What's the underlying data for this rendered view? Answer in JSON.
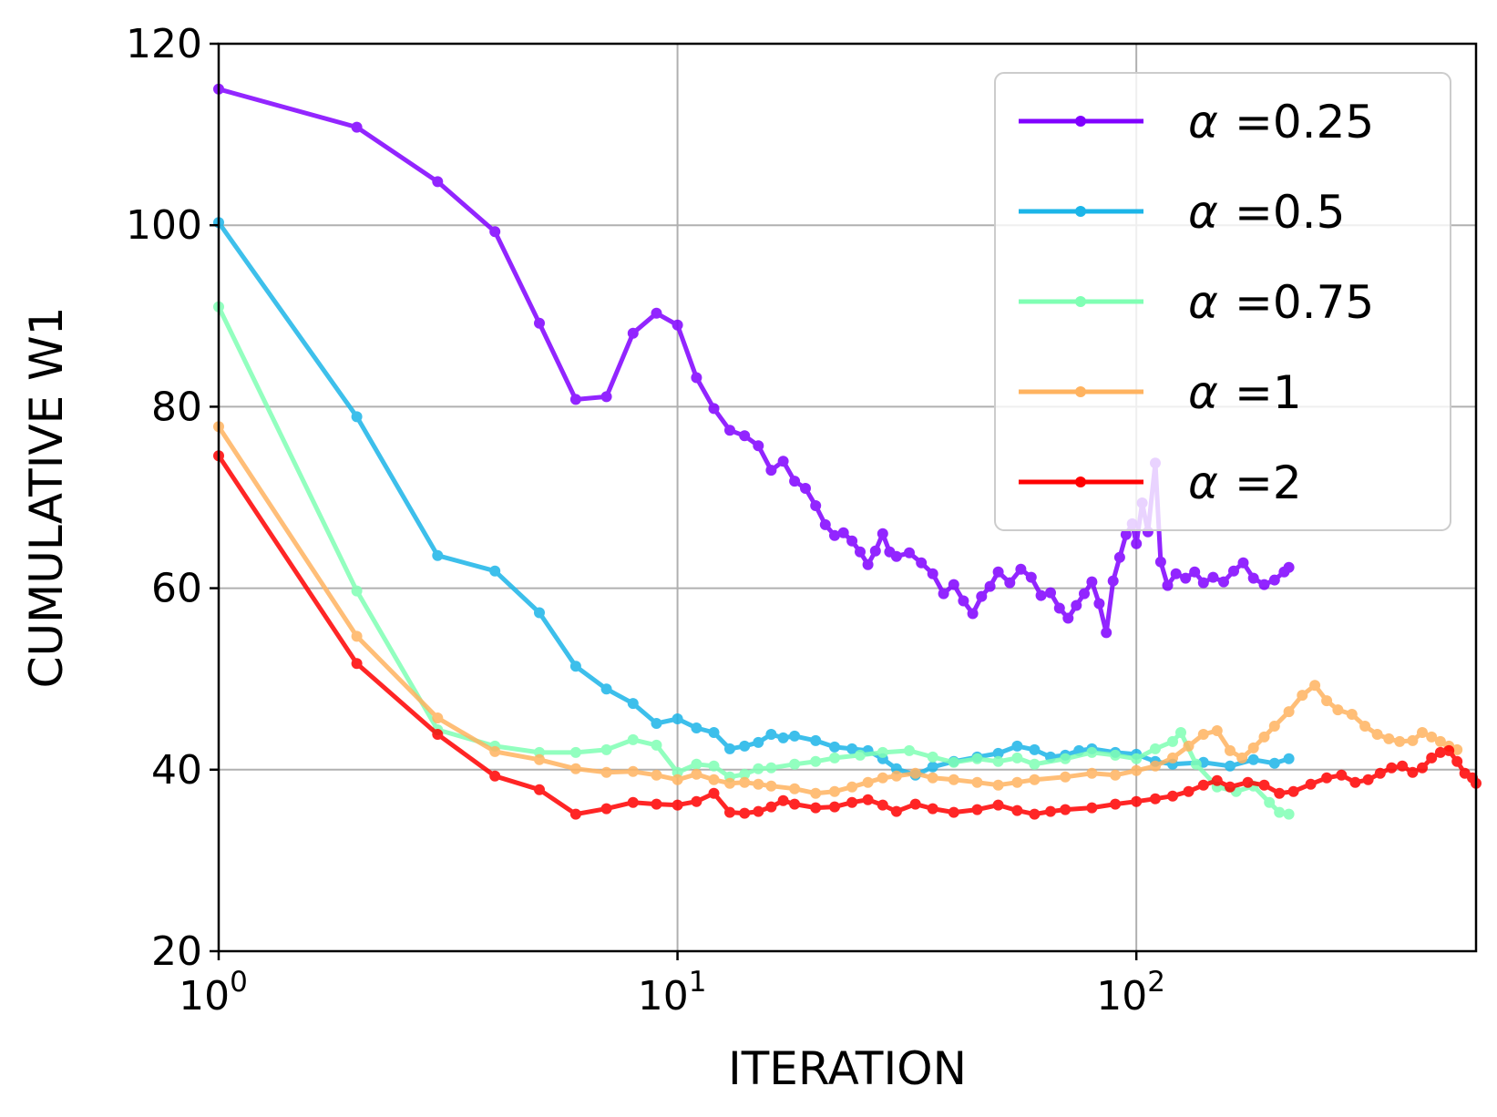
{
  "chart_data": {
    "type": "line",
    "title": "",
    "xlabel": "ITERATION",
    "ylabel": "CUMULATIVE W1",
    "xscale": "log",
    "xlim": [
      1,
      550
    ],
    "ylim": [
      20,
      120
    ],
    "yticks": [
      20,
      40,
      60,
      80,
      100,
      120
    ],
    "xticks": [
      {
        "base": "10",
        "exp": "0",
        "value": 1
      },
      {
        "base": "10",
        "exp": "1",
        "value": 10
      },
      {
        "base": "10",
        "exp": "2",
        "value": 100
      }
    ],
    "grid": true,
    "legend_position": "top-right",
    "series": [
      {
        "name": "α =0.25",
        "symbol": "α",
        "value_text": "=0.25",
        "color": "#8000ff",
        "points": [
          [
            1,
            115
          ],
          [
            2,
            110.8
          ],
          [
            3,
            104.8
          ],
          [
            4,
            99.3
          ],
          [
            5,
            89.2
          ],
          [
            6,
            80.8
          ],
          [
            7,
            81.1
          ],
          [
            8,
            88.1
          ],
          [
            9,
            90.3
          ],
          [
            10,
            89
          ],
          [
            11,
            83.2
          ],
          [
            12,
            79.8
          ],
          [
            13,
            77.4
          ],
          [
            14,
            76.8
          ],
          [
            15,
            75.7
          ],
          [
            16,
            73
          ],
          [
            17,
            74
          ],
          [
            18,
            71.8
          ],
          [
            19,
            71
          ],
          [
            20,
            69.1
          ],
          [
            21,
            67
          ],
          [
            22,
            65.8
          ],
          [
            23,
            66.1
          ],
          [
            24,
            65.2
          ],
          [
            25,
            64
          ],
          [
            26,
            62.6
          ],
          [
            27,
            64.1
          ],
          [
            28,
            66
          ],
          [
            29,
            64
          ],
          [
            30,
            63.5
          ],
          [
            32,
            63.9
          ],
          [
            34,
            62.8
          ],
          [
            36,
            61.6
          ],
          [
            38,
            59.4
          ],
          [
            40,
            60.4
          ],
          [
            42,
            58.6
          ],
          [
            44,
            57.2
          ],
          [
            46,
            59.1
          ],
          [
            48,
            60.2
          ],
          [
            50,
            61.8
          ],
          [
            53,
            60.6
          ],
          [
            56,
            62.1
          ],
          [
            59,
            61.2
          ],
          [
            62,
            59.2
          ],
          [
            65,
            59.5
          ],
          [
            68,
            57.8
          ],
          [
            71,
            56.7
          ],
          [
            74,
            58.1
          ],
          [
            77,
            59.4
          ],
          [
            80,
            60.7
          ],
          [
            83,
            58.3
          ],
          [
            86,
            55.1
          ],
          [
            89,
            60.8
          ],
          [
            92,
            63.4
          ],
          [
            95,
            65.9
          ],
          [
            98,
            67.1
          ],
          [
            100,
            64.9
          ],
          [
            103,
            69.4
          ],
          [
            106,
            66.2
          ],
          [
            110,
            73.8
          ],
          [
            113,
            62.9
          ],
          [
            117,
            60.3
          ],
          [
            122,
            61.6
          ],
          [
            128,
            61.1
          ],
          [
            134,
            61.8
          ],
          [
            140,
            60.6
          ],
          [
            147,
            61.2
          ],
          [
            155,
            60.7
          ],
          [
            163,
            61.9
          ],
          [
            171,
            62.8
          ],
          [
            180,
            61.1
          ],
          [
            190,
            60.4
          ],
          [
            200,
            60.9
          ],
          [
            210,
            61.8
          ],
          [
            215,
            62.3
          ]
        ]
      },
      {
        "name": "α =0.5",
        "symbol": "α",
        "value_text": "=0.5",
        "color": "#1cb5e8",
        "points": [
          [
            1,
            100.3
          ],
          [
            2,
            78.9
          ],
          [
            3,
            63.6
          ],
          [
            4,
            61.9
          ],
          [
            5,
            57.3
          ],
          [
            6,
            51.4
          ],
          [
            7,
            48.9
          ],
          [
            8,
            47.3
          ],
          [
            9,
            45.1
          ],
          [
            10,
            45.6
          ],
          [
            11,
            44.6
          ],
          [
            12,
            44.1
          ],
          [
            13,
            42.3
          ],
          [
            14,
            42.6
          ],
          [
            15,
            43
          ],
          [
            16,
            43.9
          ],
          [
            17,
            43.5
          ],
          [
            18,
            43.7
          ],
          [
            20,
            43.2
          ],
          [
            22,
            42.5
          ],
          [
            24,
            42.3
          ],
          [
            26,
            42.1
          ],
          [
            28,
            41.2
          ],
          [
            30,
            40.1
          ],
          [
            33,
            39.4
          ],
          [
            36,
            40.3
          ],
          [
            40,
            40.9
          ],
          [
            45,
            41.4
          ],
          [
            50,
            41.8
          ],
          [
            55,
            42.6
          ],
          [
            60,
            42.2
          ],
          [
            65,
            41.4
          ],
          [
            70,
            41.6
          ],
          [
            75,
            42.1
          ],
          [
            80,
            42.3
          ],
          [
            90,
            41.9
          ],
          [
            100,
            41.7
          ],
          [
            110,
            40.9
          ],
          [
            120,
            40.6
          ],
          [
            140,
            40.8
          ],
          [
            160,
            40.4
          ],
          [
            180,
            41.1
          ],
          [
            200,
            40.7
          ],
          [
            215,
            41.2
          ]
        ]
      },
      {
        "name": "α =0.75",
        "symbol": "α",
        "value_text": "=0.75",
        "color": "#80ffb4",
        "points": [
          [
            1,
            91
          ],
          [
            2,
            59.7
          ],
          [
            3,
            44.4
          ],
          [
            4,
            42.6
          ],
          [
            5,
            41.9
          ],
          [
            6,
            41.9
          ],
          [
            7,
            42.2
          ],
          [
            8,
            43.3
          ],
          [
            9,
            42.7
          ],
          [
            10,
            39.7
          ],
          [
            11,
            40.6
          ],
          [
            12,
            40.4
          ],
          [
            13,
            39.2
          ],
          [
            14,
            39.5
          ],
          [
            15,
            40.1
          ],
          [
            16,
            40.2
          ],
          [
            18,
            40.6
          ],
          [
            20,
            40.9
          ],
          [
            22,
            41.3
          ],
          [
            25,
            41.6
          ],
          [
            28,
            41.9
          ],
          [
            32,
            42.1
          ],
          [
            36,
            41.4
          ],
          [
            40,
            40.8
          ],
          [
            45,
            41.2
          ],
          [
            50,
            40.9
          ],
          [
            55,
            41.3
          ],
          [
            60,
            40.6
          ],
          [
            70,
            41.2
          ],
          [
            80,
            41.9
          ],
          [
            90,
            41.6
          ],
          [
            100,
            41.2
          ],
          [
            110,
            42.3
          ],
          [
            120,
            43.1
          ],
          [
            125,
            44.1
          ],
          [
            135,
            40.6
          ],
          [
            150,
            38.1
          ],
          [
            165,
            37.6
          ],
          [
            180,
            38.2
          ],
          [
            195,
            36.4
          ],
          [
            205,
            35.3
          ],
          [
            215,
            35.1
          ]
        ]
      },
      {
        "name": "α =1",
        "symbol": "α",
        "value_text": "=1",
        "color": "#ffb360",
        "points": [
          [
            1,
            77.8
          ],
          [
            2,
            54.7
          ],
          [
            3,
            45.7
          ],
          [
            4,
            42
          ],
          [
            5,
            41.1
          ],
          [
            6,
            40.1
          ],
          [
            7,
            39.7
          ],
          [
            8,
            39.8
          ],
          [
            9,
            39.4
          ],
          [
            10,
            38.9
          ],
          [
            11,
            39.5
          ],
          [
            12,
            38.9
          ],
          [
            13,
            38.5
          ],
          [
            14,
            38.6
          ],
          [
            15,
            38.4
          ],
          [
            16,
            38.2
          ],
          [
            18,
            37.9
          ],
          [
            20,
            37.4
          ],
          [
            22,
            37.6
          ],
          [
            24,
            38.1
          ],
          [
            26,
            38.6
          ],
          [
            28,
            39.1
          ],
          [
            30,
            39.3
          ],
          [
            33,
            39.6
          ],
          [
            36,
            39.1
          ],
          [
            40,
            38.9
          ],
          [
            45,
            38.6
          ],
          [
            50,
            38.3
          ],
          [
            55,
            38.6
          ],
          [
            60,
            38.9
          ],
          [
            70,
            39.2
          ],
          [
            80,
            39.6
          ],
          [
            90,
            39.4
          ],
          [
            100,
            39.9
          ],
          [
            110,
            40.4
          ],
          [
            120,
            41.3
          ],
          [
            130,
            42.6
          ],
          [
            140,
            43.9
          ],
          [
            150,
            44.3
          ],
          [
            160,
            42.1
          ],
          [
            170,
            41.3
          ],
          [
            180,
            42.4
          ],
          [
            190,
            43.6
          ],
          [
            200,
            44.8
          ],
          [
            215,
            46.4
          ],
          [
            230,
            48.2
          ],
          [
            245,
            49.3
          ],
          [
            260,
            47.6
          ],
          [
            275,
            46.6
          ],
          [
            295,
            46.1
          ],
          [
            315,
            44.8
          ],
          [
            335,
            43.9
          ],
          [
            355,
            43.4
          ],
          [
            375,
            43.1
          ],
          [
            400,
            43.2
          ],
          [
            420,
            44.1
          ],
          [
            440,
            43.6
          ],
          [
            460,
            43.1
          ],
          [
            480,
            42.6
          ],
          [
            500,
            42.2
          ]
        ]
      },
      {
        "name": "α =2",
        "symbol": "α",
        "value_text": "=2",
        "color": "#ff0000",
        "points": [
          [
            1,
            74.6
          ],
          [
            2,
            51.7
          ],
          [
            3,
            43.9
          ],
          [
            4,
            39.3
          ],
          [
            5,
            37.8
          ],
          [
            6,
            35.1
          ],
          [
            7,
            35.7
          ],
          [
            8,
            36.4
          ],
          [
            9,
            36.2
          ],
          [
            10,
            36.1
          ],
          [
            11,
            36.5
          ],
          [
            12,
            37.4
          ],
          [
            13,
            35.3
          ],
          [
            14,
            35.2
          ],
          [
            15,
            35.4
          ],
          [
            16,
            35.9
          ],
          [
            17,
            36.6
          ],
          [
            18,
            36.2
          ],
          [
            20,
            35.8
          ],
          [
            22,
            35.9
          ],
          [
            24,
            36.4
          ],
          [
            26,
            36.7
          ],
          [
            28,
            36.1
          ],
          [
            30,
            35.4
          ],
          [
            33,
            36.2
          ],
          [
            36,
            35.7
          ],
          [
            40,
            35.3
          ],
          [
            45,
            35.6
          ],
          [
            50,
            36.1
          ],
          [
            55,
            35.5
          ],
          [
            60,
            35.1
          ],
          [
            65,
            35.4
          ],
          [
            70,
            35.6
          ],
          [
            80,
            35.8
          ],
          [
            90,
            36.2
          ],
          [
            100,
            36.5
          ],
          [
            110,
            36.8
          ],
          [
            120,
            37.1
          ],
          [
            130,
            37.6
          ],
          [
            140,
            38.3
          ],
          [
            150,
            38.8
          ],
          [
            160,
            38.1
          ],
          [
            175,
            38.6
          ],
          [
            190,
            38.3
          ],
          [
            205,
            37.4
          ],
          [
            220,
            37.6
          ],
          [
            240,
            38.4
          ],
          [
            260,
            39.1
          ],
          [
            280,
            39.4
          ],
          [
            300,
            38.6
          ],
          [
            320,
            38.9
          ],
          [
            340,
            39.6
          ],
          [
            360,
            40.2
          ],
          [
            380,
            40.4
          ],
          [
            400,
            39.7
          ],
          [
            420,
            40.2
          ],
          [
            440,
            41.3
          ],
          [
            460,
            41.9
          ],
          [
            480,
            42.1
          ],
          [
            500,
            40.9
          ],
          [
            520,
            39.6
          ],
          [
            540,
            39.1
          ],
          [
            550,
            38.5
          ]
        ]
      }
    ]
  }
}
